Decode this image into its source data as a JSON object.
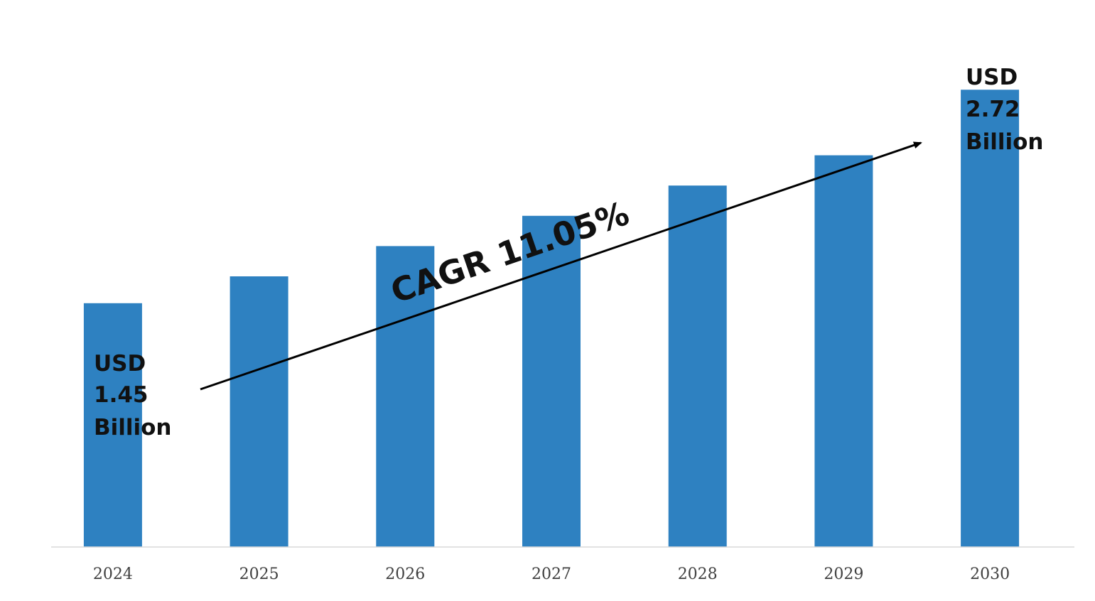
{
  "chart_data": {
    "type": "bar",
    "categories": [
      "2024",
      "2025",
      "2026",
      "2027",
      "2028",
      "2029",
      "2030"
    ],
    "values": [
      1.45,
      1.61,
      1.79,
      1.97,
      2.15,
      2.33,
      2.72
    ],
    "ylim": [
      0,
      3.0
    ],
    "grid": false,
    "legend": "none",
    "colors": {
      "bar": "#2E81C1",
      "baseline": "#D9D9D9",
      "tick_text": "#404040",
      "annotation_text": "#111111",
      "arrow": "#000000"
    },
    "annotations": {
      "start_label": [
        "USD",
        "1.45",
        "Billion"
      ],
      "end_label": [
        "USD",
        "2.72",
        "Billion"
      ],
      "cagr": "CAGR 11.05%"
    }
  }
}
